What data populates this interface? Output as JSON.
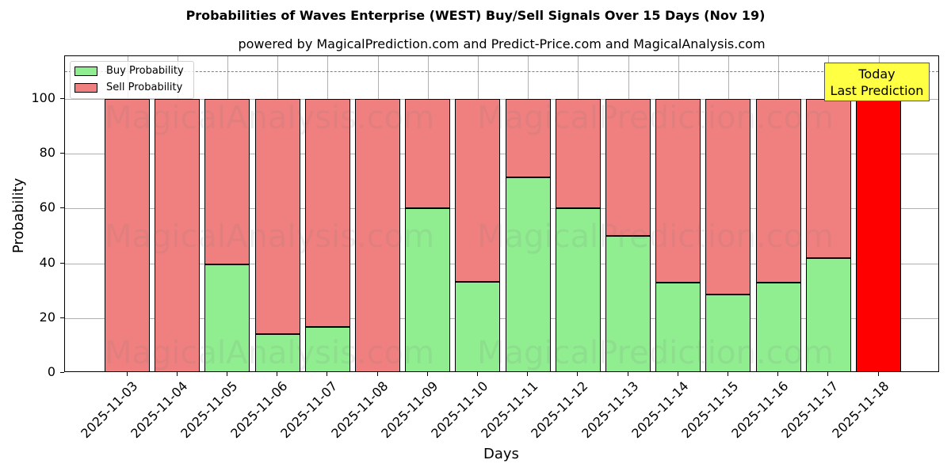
{
  "chart_data": {
    "type": "bar",
    "stacked": true,
    "title": "Probabilities of Waves Enterprise (WEST) Buy/Sell Signals Over 15 Days (Nov 19)",
    "subtitle": "powered by MagicalPrediction.com and Predict-Price.com and MagicalAnalysis.com",
    "xlabel": "Days",
    "ylabel": "Probability",
    "ylim": [
      0,
      115
    ],
    "yticks": [
      0,
      20,
      40,
      60,
      80,
      100
    ],
    "grid": true,
    "legend_position": "upper left",
    "reference_line": {
      "y": 110,
      "style": "dashed",
      "color": "#808080"
    },
    "categories": [
      "2025-11-03",
      "2025-11-04",
      "2025-11-05",
      "2025-11-06",
      "2025-11-07",
      "2025-11-08",
      "2025-11-09",
      "2025-11-10",
      "2025-11-11",
      "2025-11-12",
      "2025-11-13",
      "2025-11-14",
      "2025-11-15",
      "2025-11-16",
      "2025-11-17",
      "2025-11-18"
    ],
    "series": [
      {
        "name": "Buy Probability",
        "color": "#90ee90",
        "values": [
          0,
          0,
          39.7,
          14.2,
          16.8,
          0,
          60,
          33.3,
          71.3,
          60,
          50,
          33,
          28.5,
          33,
          42,
          0
        ]
      },
      {
        "name": "Sell Probability",
        "color": "#f08080",
        "values": [
          100,
          100,
          60.3,
          85.8,
          83.2,
          100,
          40,
          66.7,
          28.7,
          40,
          50,
          67,
          71.5,
          67,
          58,
          100
        ]
      }
    ],
    "highlight": {
      "category": "2025-11-18",
      "color": "#ff0000",
      "annotation": "Today\nLast Prediction",
      "annotation_color": "#ffff44"
    },
    "watermarks": [
      "MagicalAnalysis.com",
      "MagicalPrediction.com"
    ]
  },
  "annotation": {
    "line1": "Today",
    "line2": "Last Prediction"
  },
  "legend": {
    "buy": "Buy Probability",
    "sell": "Sell Probability"
  }
}
